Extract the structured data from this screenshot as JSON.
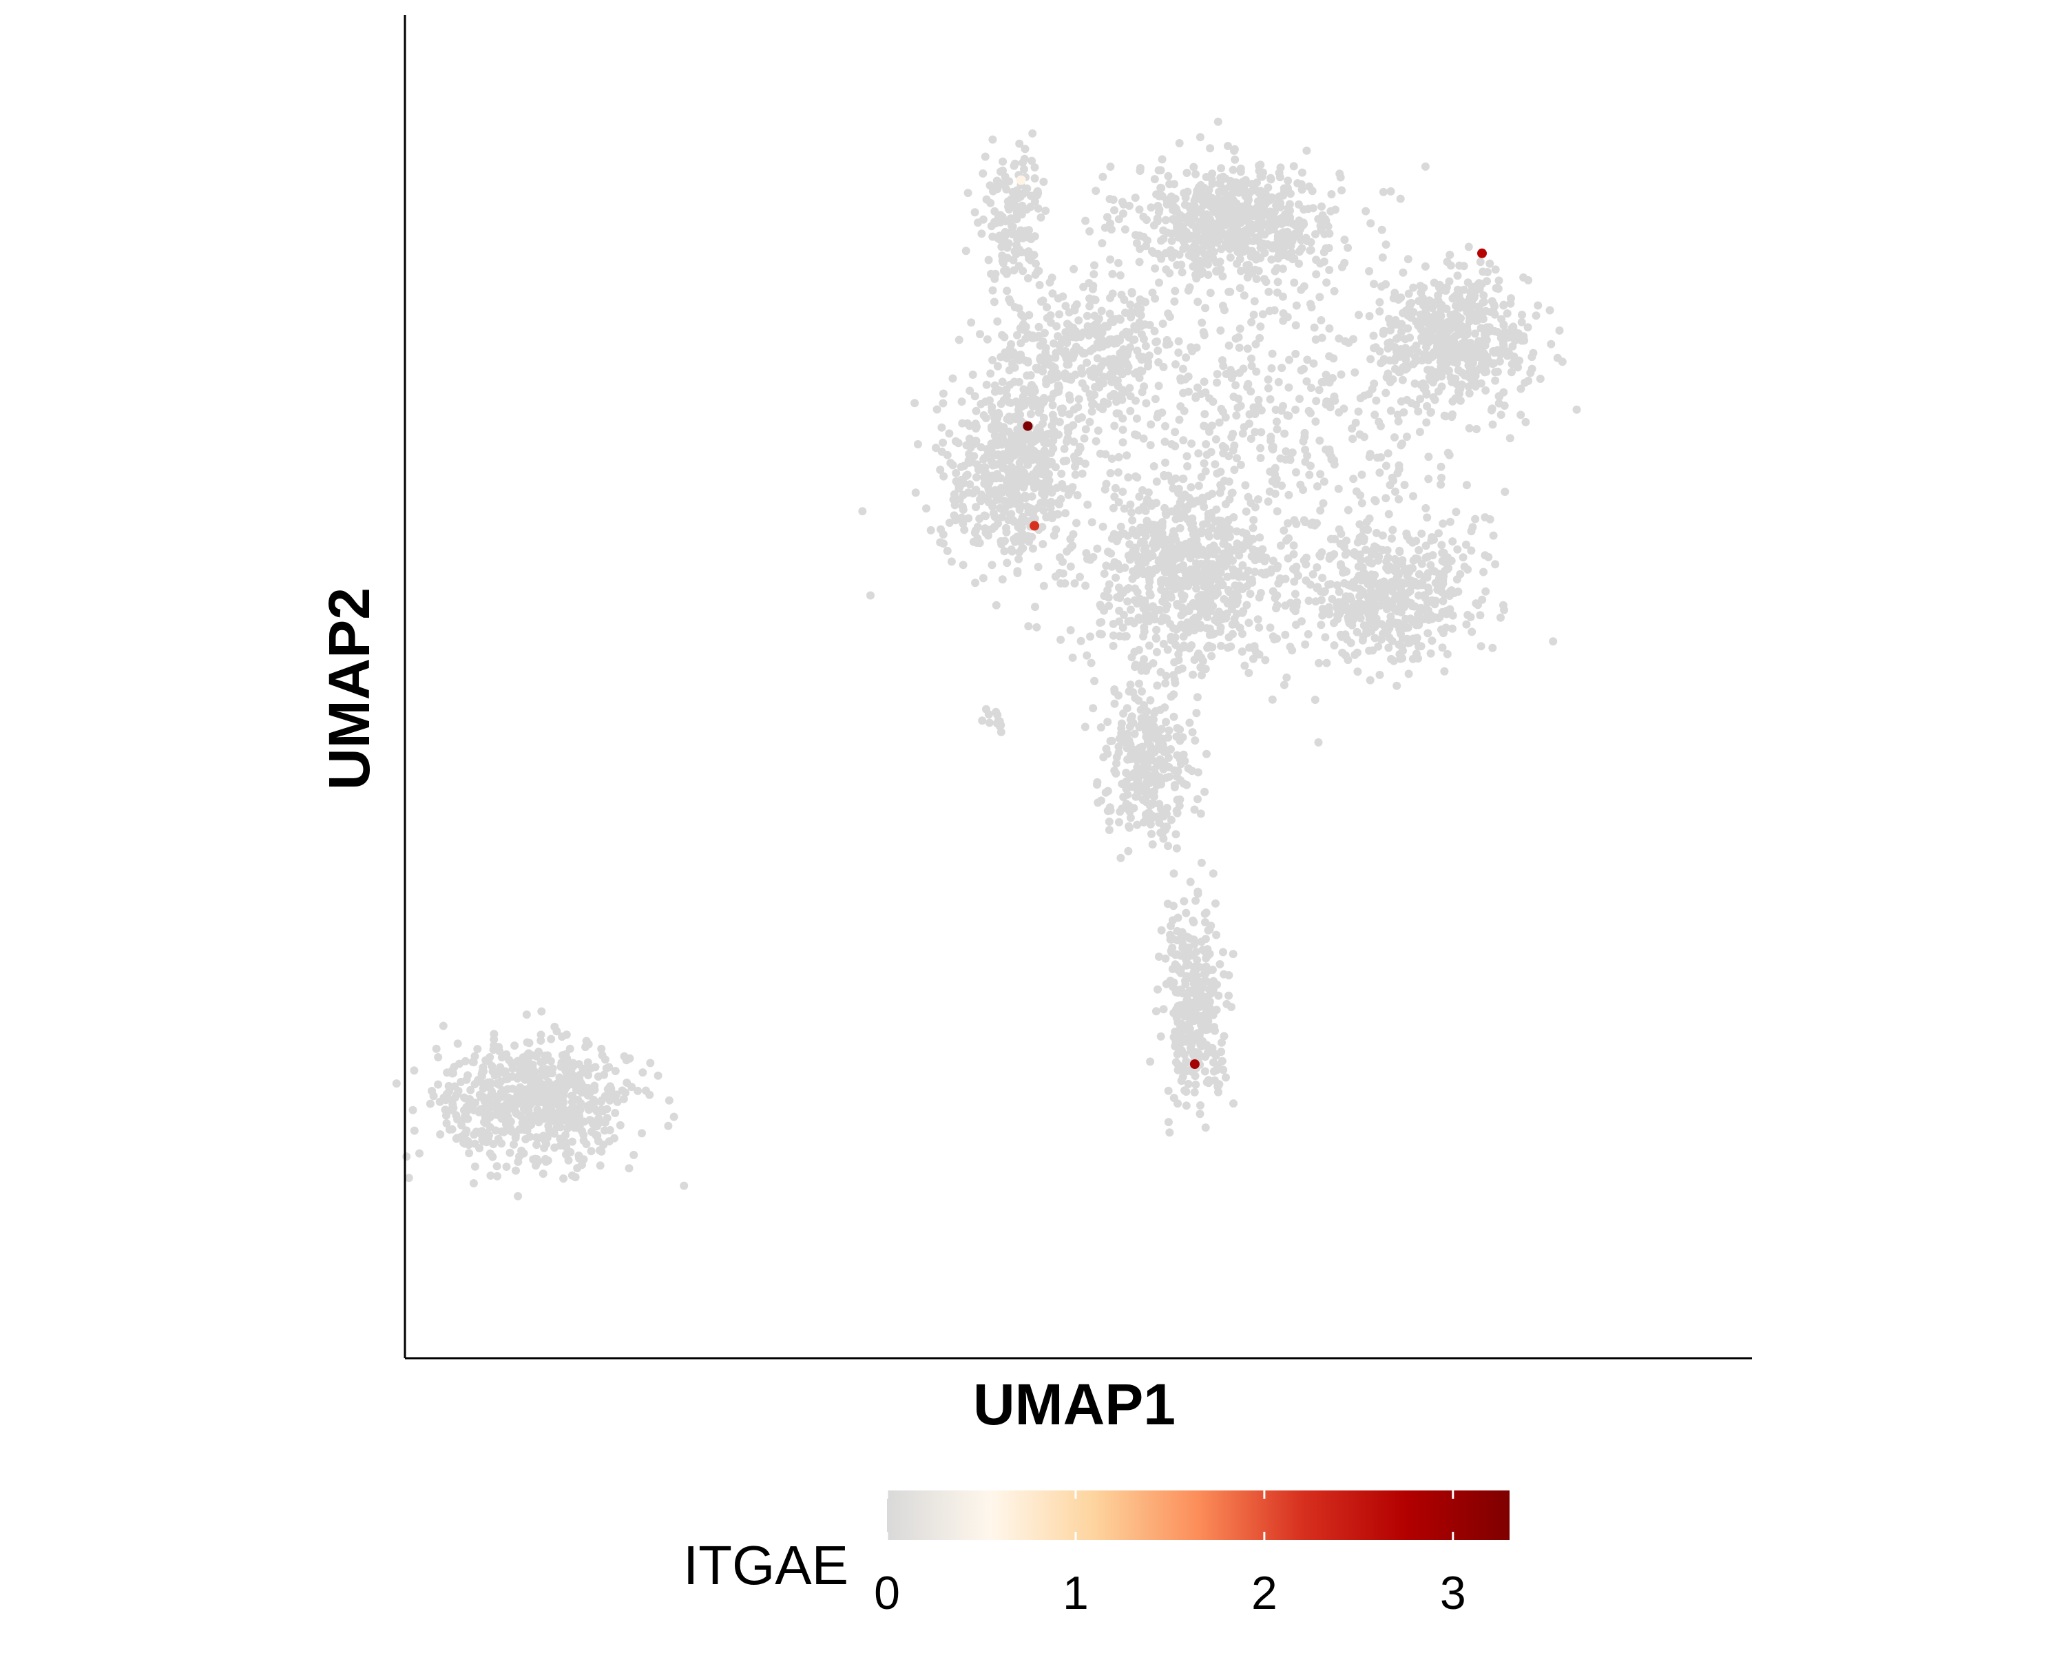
{
  "chart_data": {
    "type": "scatter",
    "title": "",
    "xlabel": "UMAP1",
    "ylabel": "UMAP2",
    "xlim": [
      -10,
      10
    ],
    "ylim": [
      -10,
      10
    ],
    "grid": false,
    "legend_position": "bottom",
    "point_color_default": "#d9d9d9",
    "colorbar": {
      "title": "ITGAE",
      "range": [
        0,
        3.3
      ],
      "ticks": [
        "0",
        "1",
        "2",
        "3"
      ],
      "tick_values": [
        0,
        1,
        2,
        3
      ],
      "colors": [
        "#d9d9d9",
        "#fff7ec",
        "#fdd49e",
        "#fc8d59",
        "#d7301f",
        "#b30000",
        "#7f0000"
      ]
    },
    "clusters": [
      {
        "cx": 2.3,
        "cy": 7.0,
        "rx": 1.4,
        "ry": 0.75,
        "n": 650
      },
      {
        "cx": 5.6,
        "cy": 5.2,
        "rx": 1.0,
        "ry": 0.9,
        "n": 520
      },
      {
        "cx": -1.0,
        "cy": 3.2,
        "rx": 1.0,
        "ry": 1.2,
        "n": 560
      },
      {
        "cx": 1.5,
        "cy": 1.6,
        "rx": 1.3,
        "ry": 1.3,
        "n": 700
      },
      {
        "cx": 4.6,
        "cy": 1.4,
        "rx": 1.2,
        "ry": 1.0,
        "n": 480
      },
      {
        "cx": 0.0,
        "cy": 5.0,
        "rx": 1.2,
        "ry": 1.0,
        "n": 380
      },
      {
        "cx": -1.0,
        "cy": 7.0,
        "rx": 0.45,
        "ry": 0.9,
        "n": 160
      },
      {
        "cx": 1.0,
        "cy": -1.1,
        "rx": 0.6,
        "ry": 1.0,
        "n": 300
      },
      {
        "cx": 1.7,
        "cy": -4.8,
        "rx": 0.45,
        "ry": 1.3,
        "n": 320
      },
      {
        "cx": 3.0,
        "cy": 4.0,
        "rx": 2.6,
        "ry": 2.6,
        "n": 520
      },
      {
        "cx": -8.2,
        "cy": -6.3,
        "rx": 1.3,
        "ry": 0.85,
        "n": 650
      },
      {
        "cx": -1.3,
        "cy": -0.5,
        "rx": 0.15,
        "ry": 0.15,
        "n": 12
      }
    ],
    "highlighted_points": [
      {
        "x": -0.9,
        "y": 7.6,
        "value": 0.6
      },
      {
        "x": 6.0,
        "y": 6.5,
        "value": 2.7
      },
      {
        "x": -0.8,
        "y": 3.9,
        "value": 3.3
      },
      {
        "x": -0.7,
        "y": 2.4,
        "value": 2.2
      },
      {
        "x": 1.7,
        "y": -5.7,
        "value": 2.9
      }
    ]
  }
}
